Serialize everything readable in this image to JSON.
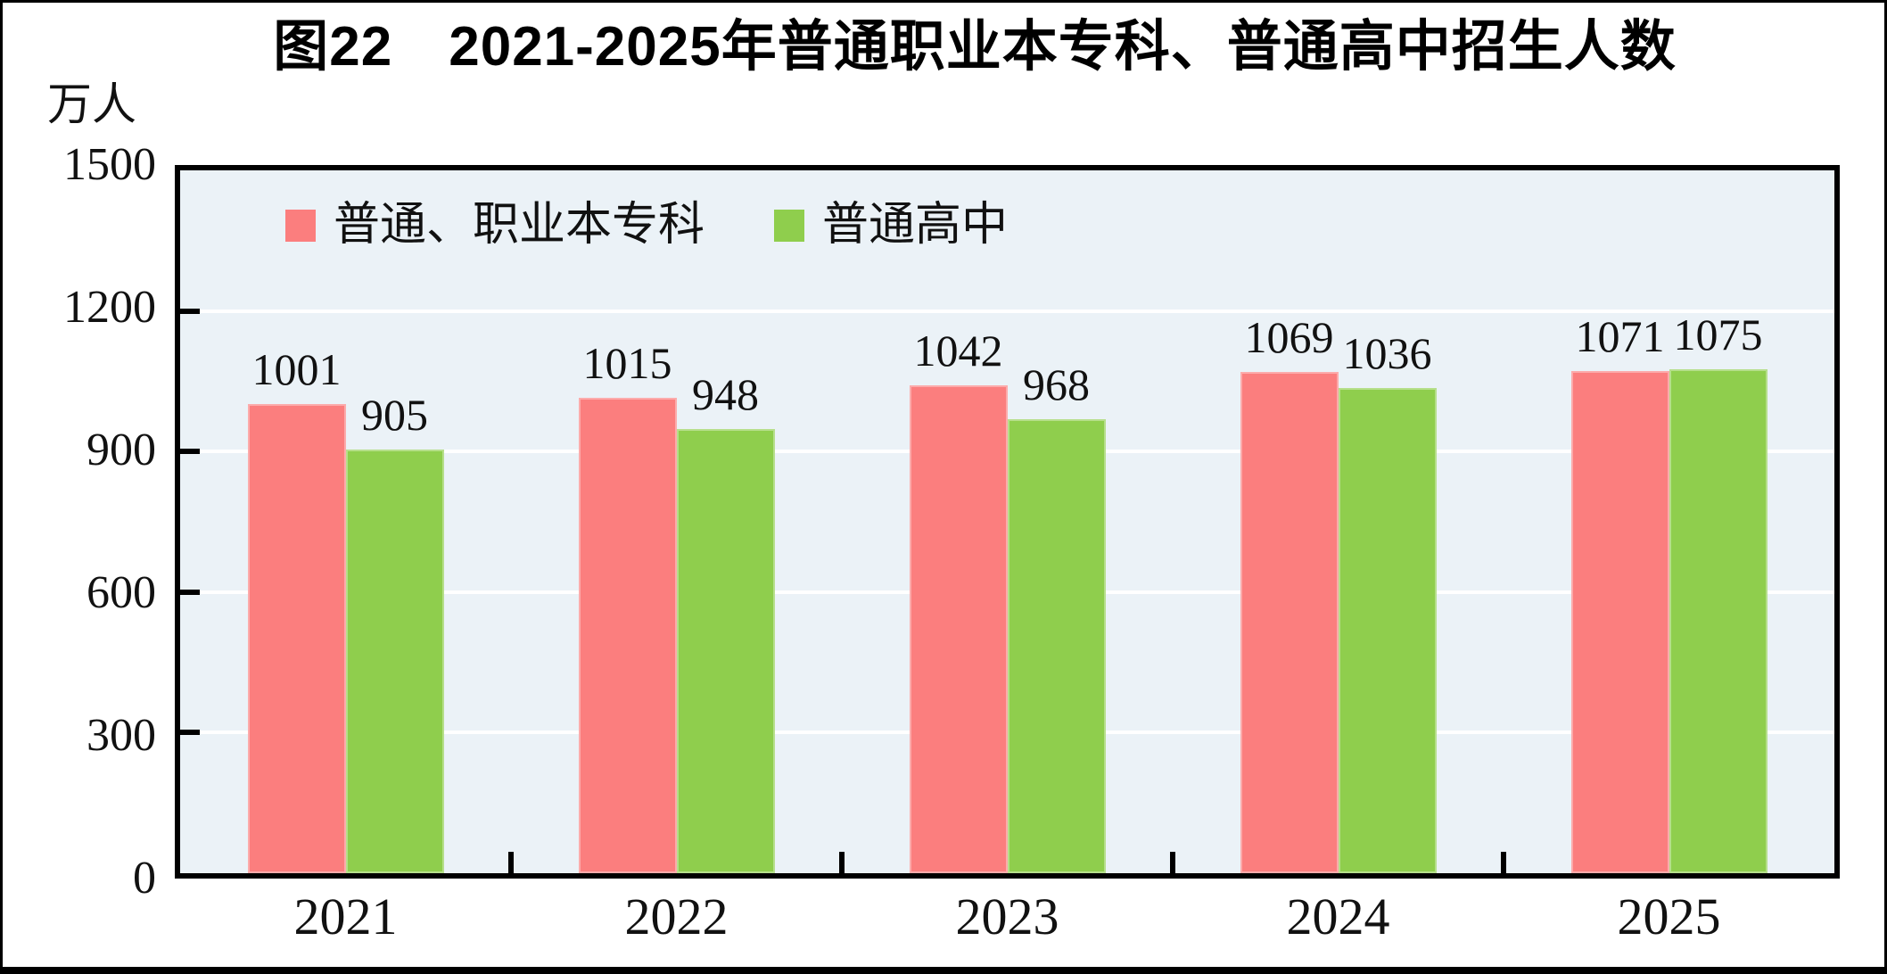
{
  "figure": {
    "title": "图22　2021-2025年普通职业本专科、普通高中招生人数",
    "unit_label": "万人"
  },
  "chart_data": {
    "type": "bar",
    "categories": [
      "2021",
      "2022",
      "2023",
      "2024",
      "2025"
    ],
    "series": [
      {
        "name": "普通、职业本专科",
        "color": "#FB7E7E",
        "values": [
          1001,
          1015,
          1042,
          1069,
          1071
        ]
      },
      {
        "name": "普通高中",
        "color": "#8FCE4D",
        "values": [
          905,
          948,
          968,
          1036,
          1075
        ]
      }
    ],
    "ylabel": "万人",
    "ylim": [
      0,
      1500
    ],
    "yticks": [
      0,
      300,
      600,
      900,
      1200,
      1500
    ],
    "grid": true,
    "gridline_color": "#FFFFFF",
    "plot_background": "#EBF2F7",
    "axis_color": "#000000",
    "legend_position": "top-left-inside",
    "value_labels": true
  }
}
